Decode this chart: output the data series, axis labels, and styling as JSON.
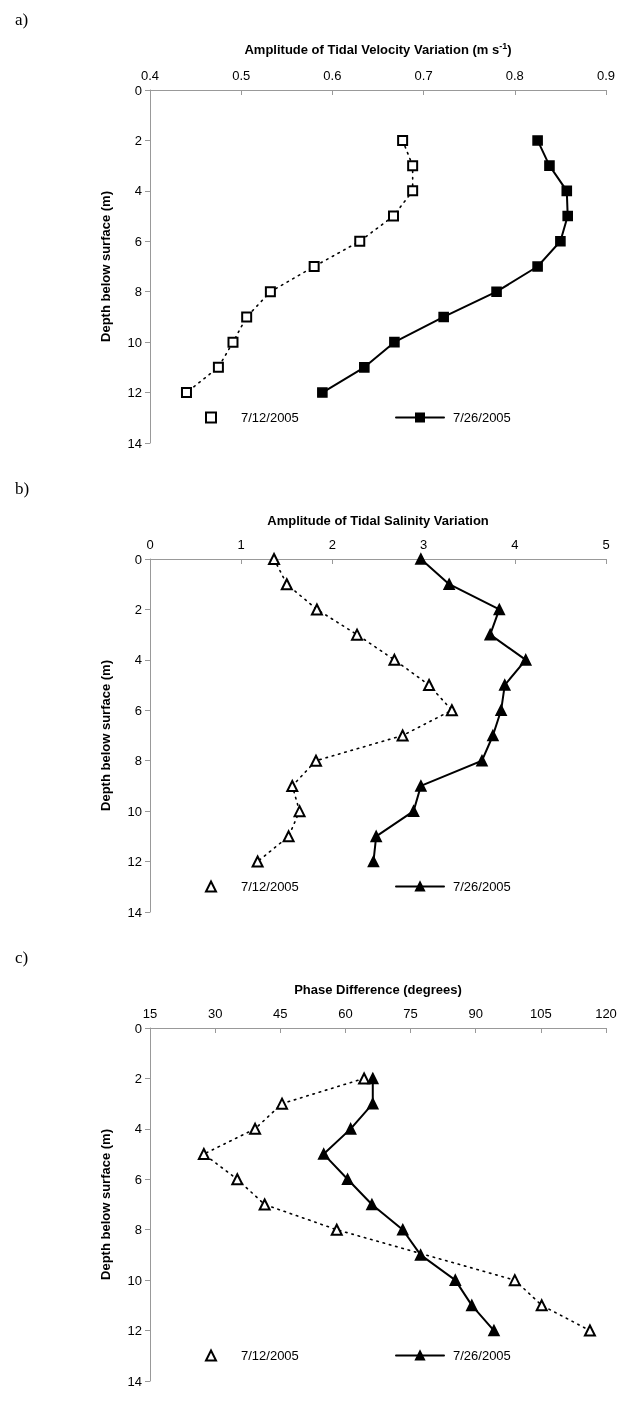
{
  "chart_data": [
    {
      "type": "line",
      "title": "a)",
      "xlabel": "Amplitude of Tidal Velocity Variation (m s$^{-1}$)",
      "ylabel": "Depth below surface (m)",
      "xlim": [
        0.4,
        0.9
      ],
      "xticks": [
        0.4,
        0.5,
        0.6,
        0.7,
        0.8,
        0.9
      ],
      "ylim": [
        14,
        0
      ],
      "yticks": [
        0,
        2,
        4,
        6,
        8,
        10,
        12,
        14
      ],
      "grid": false,
      "legend": "bottom",
      "marker": "square",
      "series": [
        {
          "name": "7/12/2005",
          "color": "#000000",
          "line_style": "dotted",
          "x": [
            0.677,
            0.688,
            0.688,
            0.667,
            0.63,
            0.58,
            0.532,
            0.506,
            0.491,
            0.475,
            0.44
          ],
          "values": [
            2,
            3,
            4,
            5,
            6,
            7,
            8,
            9,
            10,
            11,
            12
          ]
        },
        {
          "name": "7/26/2005",
          "color": "#000000",
          "line_style": "solid",
          "x": [
            0.825,
            0.838,
            0.857,
            0.858,
            0.85,
            0.825,
            0.78,
            0.722,
            0.668,
            0.635,
            0.589
          ],
          "values": [
            2,
            3,
            4,
            5,
            6,
            7,
            8,
            9,
            10,
            11,
            12
          ]
        }
      ]
    },
    {
      "type": "line",
      "title": "b)",
      "xlabel": "Amplitude of Tidal Salinity Variation",
      "ylabel": "Depth below surface (m)",
      "xlim": [
        0,
        5
      ],
      "xticks": [
        0,
        1,
        2,
        3,
        4,
        5
      ],
      "ylim": [
        14,
        0
      ],
      "yticks": [
        0,
        2,
        4,
        6,
        8,
        10,
        12,
        14
      ],
      "grid": false,
      "legend": "bottom",
      "marker": "triangle",
      "series": [
        {
          "name": "7/12/2005",
          "color": "#000000",
          "line_style": "dotted",
          "x": [
            1.36,
            1.5,
            1.83,
            2.27,
            2.68,
            3.06,
            3.31,
            2.77,
            1.82,
            1.56,
            1.64,
            1.52,
            1.18
          ],
          "values": [
            0,
            1,
            2,
            3,
            4,
            5,
            6,
            7,
            8,
            9,
            10,
            11,
            12
          ]
        },
        {
          "name": "7/26/2005",
          "color": "#000000",
          "line_style": "solid",
          "x": [
            2.97,
            3.28,
            3.83,
            3.73,
            4.12,
            3.89,
            3.85,
            3.76,
            3.64,
            2.97,
            2.89,
            2.48,
            2.45
          ],
          "values": [
            0,
            1,
            2,
            3,
            4,
            5,
            6,
            7,
            8,
            9,
            10,
            11,
            12
          ]
        }
      ]
    },
    {
      "type": "line",
      "title": "c)",
      "xlabel": "Phase Difference (degrees)",
      "ylabel": "Depth below surface (m)",
      "xlim": [
        15,
        120
      ],
      "xticks": [
        15,
        30,
        45,
        60,
        75,
        90,
        105,
        120
      ],
      "ylim": [
        14,
        0
      ],
      "yticks": [
        0,
        2,
        4,
        6,
        8,
        10,
        12,
        14
      ],
      "grid": false,
      "legend": "bottom",
      "marker": "triangle",
      "series": [
        {
          "name": "7/12/2005",
          "color": "#000000",
          "line_style": "dotted",
          "x": [
            64.3,
            45.4,
            39.2,
            27.4,
            35.1,
            41.4,
            58.0,
            99.0,
            105.2,
            116.3
          ],
          "values": [
            2,
            3,
            4,
            5,
            6,
            7,
            8,
            10,
            11,
            12
          ]
        },
        {
          "name": "7/26/2005",
          "color": "#000000",
          "line_style": "solid",
          "x": [
            66.3,
            66.3,
            61.2,
            55.0,
            60.5,
            66.1,
            73.2,
            77.3,
            85.3,
            89.1,
            94.2
          ],
          "values": [
            2,
            3,
            4,
            5,
            6,
            7,
            8,
            9,
            10,
            11,
            12
          ]
        }
      ]
    }
  ]
}
